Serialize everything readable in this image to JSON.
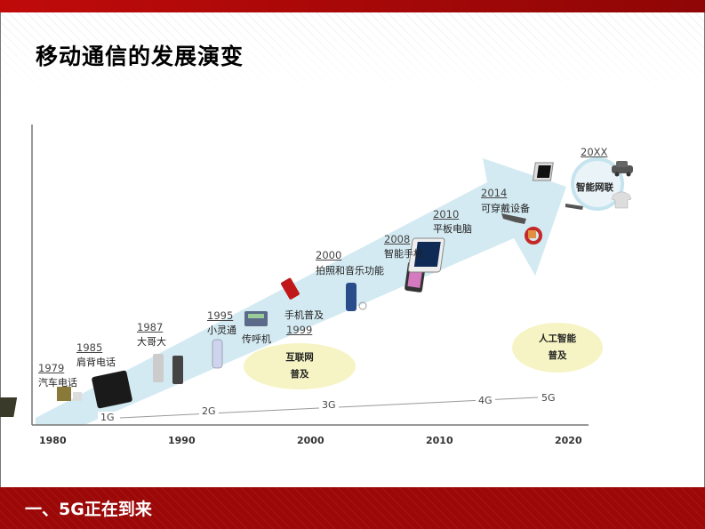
{
  "slide_title": "移动通信的发展演变",
  "section_title": "一、5G正在到来",
  "colors": {
    "brand_red": "#b00808",
    "arrow": "#d4eaf2",
    "bubble": "#f6f4c4"
  },
  "milestones": [
    {
      "year": "1979",
      "label": "汽车电话"
    },
    {
      "year": "1985",
      "label": "肩背电话"
    },
    {
      "year": "1987",
      "label": "大哥大"
    },
    {
      "year": "1995",
      "label": "小灵通"
    },
    {
      "year": "",
      "label": "传呼机"
    },
    {
      "year": "1999",
      "label": "手机普及"
    },
    {
      "year": "2000",
      "label": "拍照和音乐功能"
    },
    {
      "year": "2008",
      "label": "智能手机"
    },
    {
      "year": "2010",
      "label": "平板电脑"
    },
    {
      "year": "2014",
      "label": "可穿戴设备"
    },
    {
      "year": "20XX",
      "label": "智能网联"
    }
  ],
  "bubbles": [
    {
      "line1": "互联网",
      "line2": "普及"
    },
    {
      "line1": "人工智能",
      "line2": "普及"
    }
  ],
  "generations": [
    "1G",
    "2G",
    "3G",
    "4G",
    "5G"
  ],
  "x_axis": [
    "1980",
    "1990",
    "2000",
    "2010",
    "2020"
  ]
}
